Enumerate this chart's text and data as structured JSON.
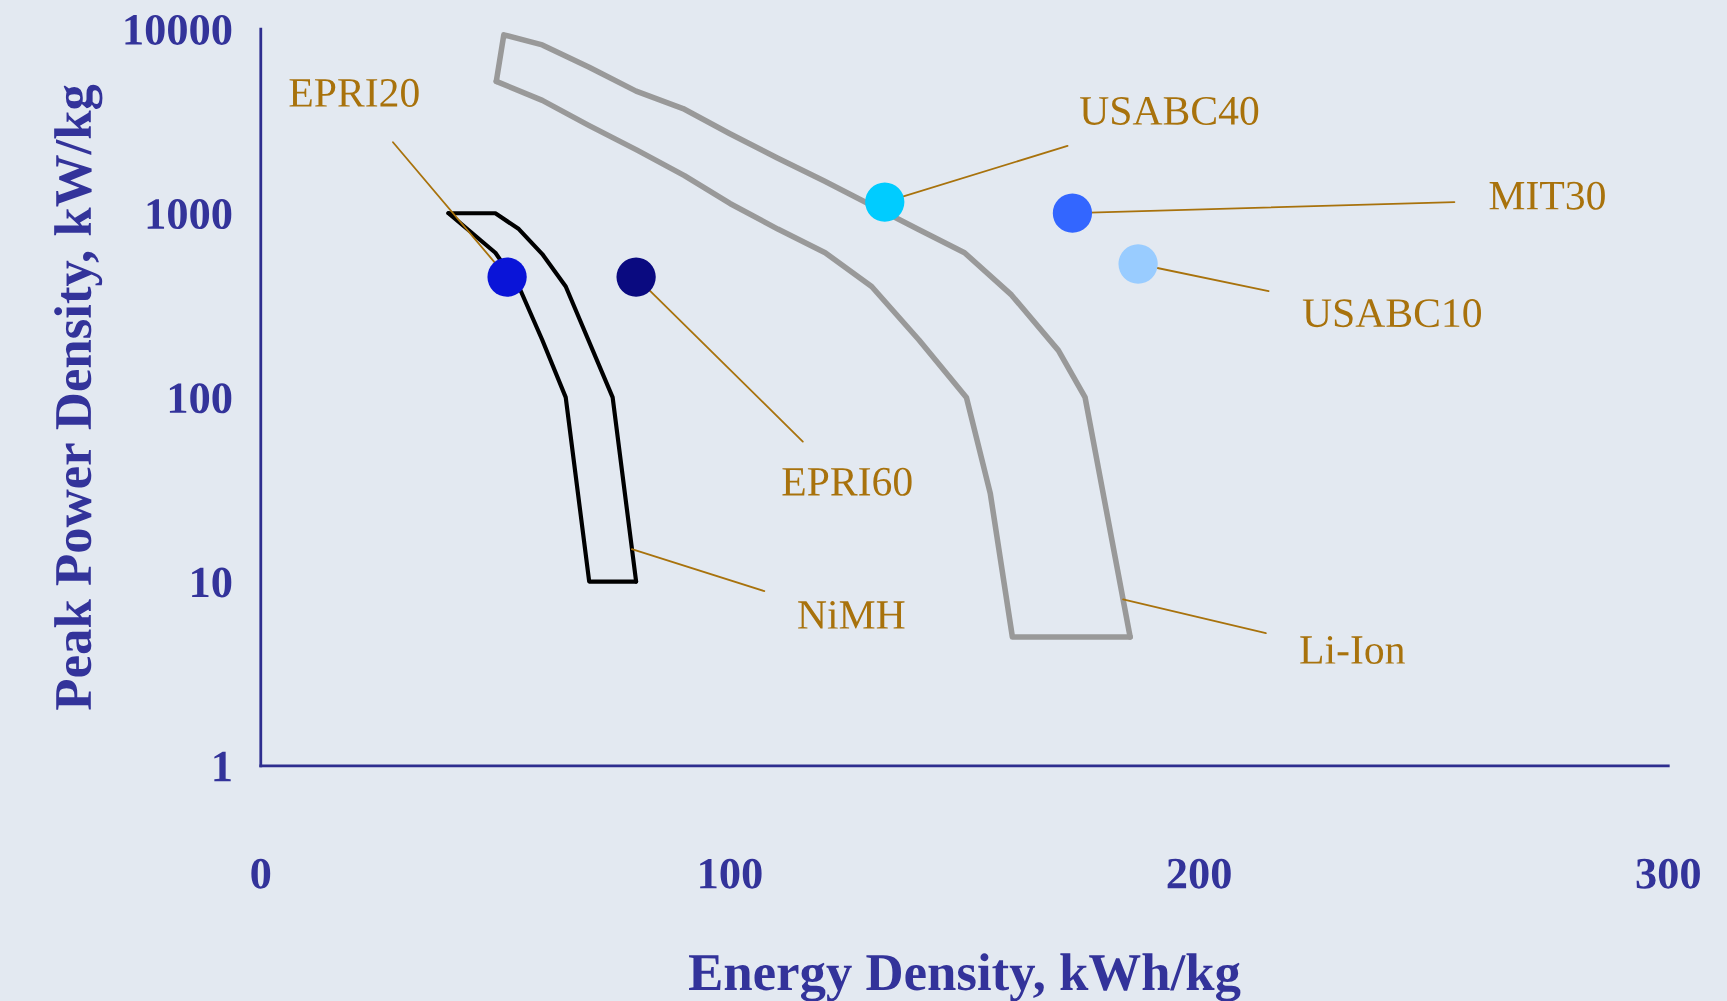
{
  "chart_data": {
    "type": "scatter",
    "xlabel": "Energy Density, kWh/kg",
    "ylabel": "Peak Power Density, kW/kg",
    "log": "y",
    "xlim": [
      0,
      300
    ],
    "ylim": [
      1,
      10000
    ],
    "xticks": [
      0,
      100,
      200,
      300
    ],
    "yticks": [
      1,
      10,
      100,
      1000,
      10000
    ],
    "grid": false,
    "legend": false,
    "series": [
      {
        "type": "line",
        "color": "#000000",
        "x": [
          40,
          50,
          55,
          60,
          65,
          75,
          80
        ],
        "values": [
          1000,
          1000,
          820,
          600,
          400,
          100,
          10
        ]
      },
      {
        "type": "line",
        "color": "#000000",
        "x": [
          40,
          50,
          55,
          60,
          65,
          70,
          80
        ],
        "values": [
          1000,
          610,
          400,
          205,
          100,
          10,
          10
        ]
      },
      {
        "type": "line",
        "color": "#999999",
        "x": [
          50.2,
          51.8,
          60,
          70,
          80,
          90,
          100,
          110,
          120,
          140,
          150,
          160,
          170,
          175.7,
          185.3
        ],
        "values": [
          5200,
          9300,
          8200,
          6200,
          4600,
          3700,
          2700,
          2000,
          1500,
          820,
          610,
          360,
          180,
          100,
          5
        ]
      },
      {
        "type": "line",
        "color": "#999999",
        "x": [
          50.2,
          60,
          69.9,
          80.2,
          90.3,
          100,
          110.2,
          120.3,
          130.2,
          140.3,
          150.4,
          155.5,
          160.2,
          185.3
        ],
        "values": [
          5200,
          4100,
          3000,
          2200,
          1600,
          1130,
          820,
          610,
          400,
          205,
          100,
          30,
          5,
          5
        ]
      },
      {
        "name": "EPRI20",
        "color": "#0a14d8",
        "x": [
          52.5
        ],
        "values": [
          450
        ],
        "marker": "circle"
      },
      {
        "name": "EPRI60",
        "color": "#0a0a80",
        "x": [
          80
        ],
        "values": [
          450
        ],
        "marker": "circle"
      },
      {
        "name": "USABC40",
        "color": "#00ccff",
        "x": [
          133
        ],
        "values": [
          1150
        ],
        "marker": "circle"
      },
      {
        "name": "MIT30",
        "color": "#3366ff",
        "x": [
          173
        ],
        "values": [
          1000
        ],
        "marker": "circle"
      },
      {
        "name": "USABC10",
        "color": "#99ccff",
        "x": [
          187
        ],
        "values": [
          530
        ],
        "marker": "circle"
      }
    ],
    "annotations": [
      {
        "text": "NiMH",
        "x": 79.1,
        "y": 15
      },
      {
        "text": "Li-Ion",
        "x": 183.8,
        "y": 8
      }
    ]
  }
}
